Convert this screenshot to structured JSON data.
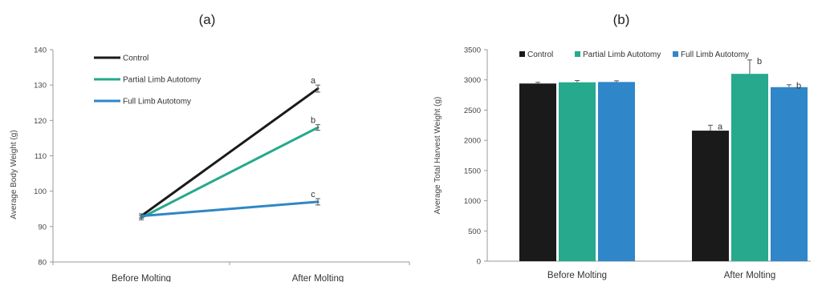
{
  "chart_data": [
    {
      "panel_label": "(a)",
      "type": "line",
      "title": "",
      "xlabel": "",
      "ylabel": "Average Body Weight (g)",
      "categories": [
        "Before Molting",
        "After Molting"
      ],
      "ylim": [
        80,
        140
      ],
      "yticks": [
        80,
        90,
        100,
        110,
        120,
        130,
        140
      ],
      "grid": false,
      "legend_position": "top-left",
      "series": [
        {
          "name": "Control",
          "color": "#1a1a1a",
          "values": [
            93,
            129
          ],
          "errors": [
            0.6,
            1.0
          ],
          "sig_labels": [
            "",
            "a"
          ]
        },
        {
          "name": "Partial Limb Autotomy",
          "color": "#26a98d",
          "values": [
            92.5,
            118
          ],
          "errors": [
            0.6,
            0.8
          ],
          "sig_labels": [
            "",
            "b"
          ]
        },
        {
          "name": "Full Limb Autotomy",
          "color": "#2f86c8",
          "values": [
            93,
            97
          ],
          "errors": [
            0.6,
            0.9
          ],
          "sig_labels": [
            "",
            "c"
          ]
        }
      ]
    },
    {
      "panel_label": "(b)",
      "type": "bar",
      "title": "",
      "xlabel": "",
      "ylabel": "Average Total Harvest Weight (g)",
      "categories": [
        "Before Molting",
        "After Molting"
      ],
      "ylim": [
        0,
        3500
      ],
      "yticks": [
        0,
        500,
        1000,
        1500,
        2000,
        2500,
        3000,
        3500
      ],
      "grid": false,
      "legend_position": "top",
      "series": [
        {
          "name": "Control",
          "color": "#1a1a1a",
          "values": [
            2940,
            2160
          ],
          "errors": [
            20,
            90
          ],
          "sig_labels": [
            "",
            "a"
          ]
        },
        {
          "name": "Partial Limb Autotomy",
          "color": "#26a98d",
          "values": [
            2960,
            3100
          ],
          "errors": [
            30,
            230
          ],
          "sig_labels": [
            "",
            "b"
          ]
        },
        {
          "name": "Full Limb Autotomy",
          "color": "#2f86c8",
          "values": [
            2965,
            2880
          ],
          "errors": [
            20,
            40
          ],
          "sig_labels": [
            "",
            "b"
          ]
        }
      ]
    }
  ]
}
